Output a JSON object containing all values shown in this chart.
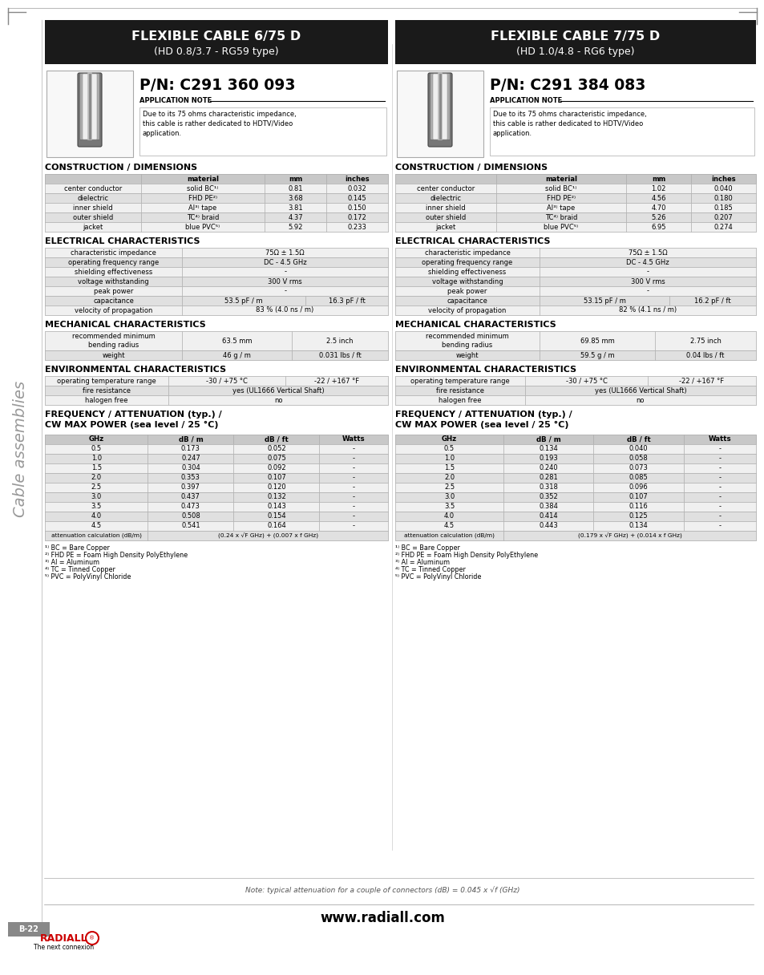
{
  "bg_color": "#ffffff",
  "header_bg": "#1a1a1a",
  "table_header_bg": "#c8c8c8",
  "table_row_light": "#f0f0f0",
  "table_row_dark": "#e0e0e0",
  "border_color": "#999999",
  "cable1": {
    "title_main": "FLEXIBLE CABLE 6/75 D",
    "title_sub": "(HD 0.8/3.7 - RG59 type)",
    "pn": "P/N: C291 360 093",
    "app_note": "Due to its 75 ohms characteristic impedance,\nthis cable is rather dedicated to HDTV/Video\napplication.",
    "construction_rows": [
      [
        "center conductor",
        "solid BC¹⁾",
        "0.81",
        "0.032"
      ],
      [
        "dielectric",
        "FHD PE²⁾",
        "3.68",
        "0.145"
      ],
      [
        "inner shield",
        "Al³⁾ tape",
        "3.81",
        "0.150"
      ],
      [
        "outer shield",
        "TC⁴⁾ braid",
        "4.37",
        "0.172"
      ],
      [
        "jacket",
        "blue PVC⁵⁾",
        "5.92",
        "0.233"
      ]
    ],
    "electrical_rows": [
      [
        "characteristic impedance",
        "75Ω ± 1.5Ω",
        ""
      ],
      [
        "operating frequency range",
        "DC - 4.5 GHz",
        ""
      ],
      [
        "shielding effectiveness",
        "-",
        ""
      ],
      [
        "voltage withstanding",
        "300 V rms",
        ""
      ],
      [
        "peak power",
        "-",
        ""
      ],
      [
        "capacitance",
        "53.5 pF / m",
        "16.3 pF / ft"
      ],
      [
        "velocity of propagation",
        "83 % (4.0 ns / m)",
        ""
      ]
    ],
    "mechanical_rows": [
      [
        "recommended minimum\nbending radius",
        "63.5 mm",
        "2.5 inch"
      ],
      [
        "weight",
        "46 g / m",
        "0.031 lbs / ft"
      ]
    ],
    "environmental_rows": [
      [
        "operating temperature range",
        "-30 / +75 °C",
        "-22 / +167 °F"
      ],
      [
        "fire resistance",
        "yes (UL1666 Vertical Shaft)",
        ""
      ],
      [
        "halogen free",
        "no",
        ""
      ]
    ],
    "freq_headers": [
      "GHz",
      "dB / m",
      "dB / ft",
      "Watts"
    ],
    "freq_rows": [
      [
        "0.5",
        "0.173",
        "0.052",
        "-"
      ],
      [
        "1.0",
        "0.247",
        "0.075",
        "-"
      ],
      [
        "1.5",
        "0.304",
        "0.092",
        "-"
      ],
      [
        "2.0",
        "0.353",
        "0.107",
        "-"
      ],
      [
        "2.5",
        "0.397",
        "0.120",
        "-"
      ],
      [
        "3.0",
        "0.437",
        "0.132",
        "-"
      ],
      [
        "3.5",
        "0.473",
        "0.143",
        "-"
      ],
      [
        "4.0",
        "0.508",
        "0.154",
        "-"
      ],
      [
        "4.5",
        "0.541",
        "0.164",
        "-"
      ],
      [
        "attenuation calculation (dB/m)",
        "(0.24 x √F GHz) + (0.007 x f GHz)",
        "",
        ""
      ]
    ],
    "footnotes": [
      "¹⁾ BC = Bare Copper",
      "²⁾ FHD PE = Foam High Density PolyEthylene",
      "³⁾ Al = Aluminum",
      "⁴⁾ TC = Tinned Copper",
      "⁵⁾ PVC = PolyVinyl Chloride"
    ]
  },
  "cable2": {
    "title_main": "FLEXIBLE CABLE 7/75 D",
    "title_sub": "(HD 1.0/4.8 - RG6 type)",
    "pn": "P/N: C291 384 083",
    "app_note": "Due to its 75 ohms characteristic impedance,\nthis cable is rather dedicated to HDTV/Video\napplication.",
    "construction_rows": [
      [
        "center conductor",
        "solid BC¹⁾",
        "1.02",
        "0.040"
      ],
      [
        "dielectric",
        "FHD PE²⁾",
        "4.56",
        "0.180"
      ],
      [
        "inner shield",
        "Al³⁾ tape",
        "4.70",
        "0.185"
      ],
      [
        "outer shield",
        "TC⁴⁾ braid",
        "5.26",
        "0.207"
      ],
      [
        "jacket",
        "blue PVC⁵⁾",
        "6.95",
        "0.274"
      ]
    ],
    "electrical_rows": [
      [
        "characteristic impedance",
        "75Ω ± 1.5Ω",
        ""
      ],
      [
        "operating frequency range",
        "DC - 4.5 GHz",
        ""
      ],
      [
        "shielding effectiveness",
        "-",
        ""
      ],
      [
        "voltage withstanding",
        "300 V rms",
        ""
      ],
      [
        "peak power",
        "-",
        ""
      ],
      [
        "capacitance",
        "53.15 pF / m",
        "16.2 pF / ft"
      ],
      [
        "velocity of propagation",
        "82 % (4.1 ns / m)",
        ""
      ]
    ],
    "mechanical_rows": [
      [
        "recommended minimum\nbending radius",
        "69.85 mm",
        "2.75 inch"
      ],
      [
        "weight",
        "59.5 g / m",
        "0.04 lbs / ft"
      ]
    ],
    "environmental_rows": [
      [
        "operating temperature range",
        "-30 / +75 °C",
        "-22 / +167 °F"
      ],
      [
        "fire resistance",
        "yes (UL1666 Vertical Shaft)",
        ""
      ],
      [
        "halogen free",
        "no",
        ""
      ]
    ],
    "freq_headers": [
      "GHz",
      "dB / m",
      "dB / ft",
      "Watts"
    ],
    "freq_rows": [
      [
        "0.5",
        "0.134",
        "0.040",
        "-"
      ],
      [
        "1.0",
        "0.193",
        "0.058",
        "-"
      ],
      [
        "1.5",
        "0.240",
        "0.073",
        "-"
      ],
      [
        "2.0",
        "0.281",
        "0.085",
        "-"
      ],
      [
        "2.5",
        "0.318",
        "0.096",
        "-"
      ],
      [
        "3.0",
        "0.352",
        "0.107",
        "-"
      ],
      [
        "3.5",
        "0.384",
        "0.116",
        "-"
      ],
      [
        "4.0",
        "0.414",
        "0.125",
        "-"
      ],
      [
        "4.5",
        "0.443",
        "0.134",
        "-"
      ],
      [
        "attenuation calculation (dB/m)",
        "(0.179 x √F GHz) + (0.014 x f GHz)",
        "",
        ""
      ]
    ],
    "footnotes": [
      "¹⁾ BC = Bare Copper",
      "²⁾ FHD PE = Foam High Density PolyEthylene",
      "³⁾ Al = Aluminum",
      "⁴⁾ TC = Tinned Copper",
      "⁵⁾ PVC = PolyVinyl Chloride"
    ]
  },
  "sidebar_text": "Cable assemblies",
  "footer_note": "Note: typical attenuation for a couple of connectors (dB) = 0.045 x √f (GHz)",
  "page_num": "B-22",
  "website": "www.radiall.com"
}
